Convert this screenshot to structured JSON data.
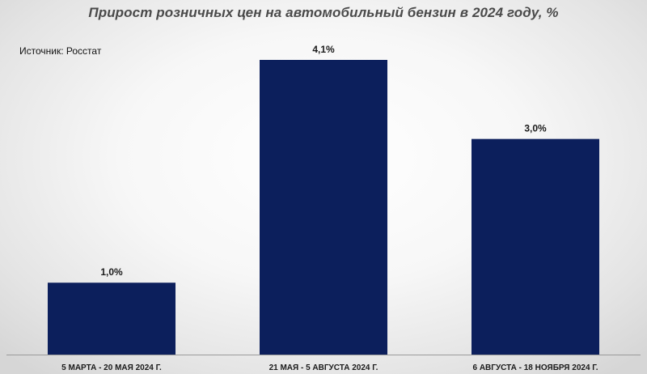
{
  "chart_data": {
    "type": "bar",
    "title": "Прирост розничных цен на автомобильный бензин в 2024 году, %",
    "source": "Источник: Росстат",
    "categories": [
      "5 МАРТА - 20 МАЯ 2024 Г.",
      "21 МАЯ - 5 АВГУСТА 2024 Г.",
      "6 АВГУСТА - 18 НОЯБРЯ 2024 Г."
    ],
    "values": [
      1.0,
      4.1,
      3.0
    ],
    "data_labels": [
      "1,0%",
      "4,1%",
      "3,0%"
    ],
    "ylim": [
      0,
      4.1
    ],
    "grid": false,
    "legend": "none",
    "bar_color": "#0c1f5c"
  }
}
